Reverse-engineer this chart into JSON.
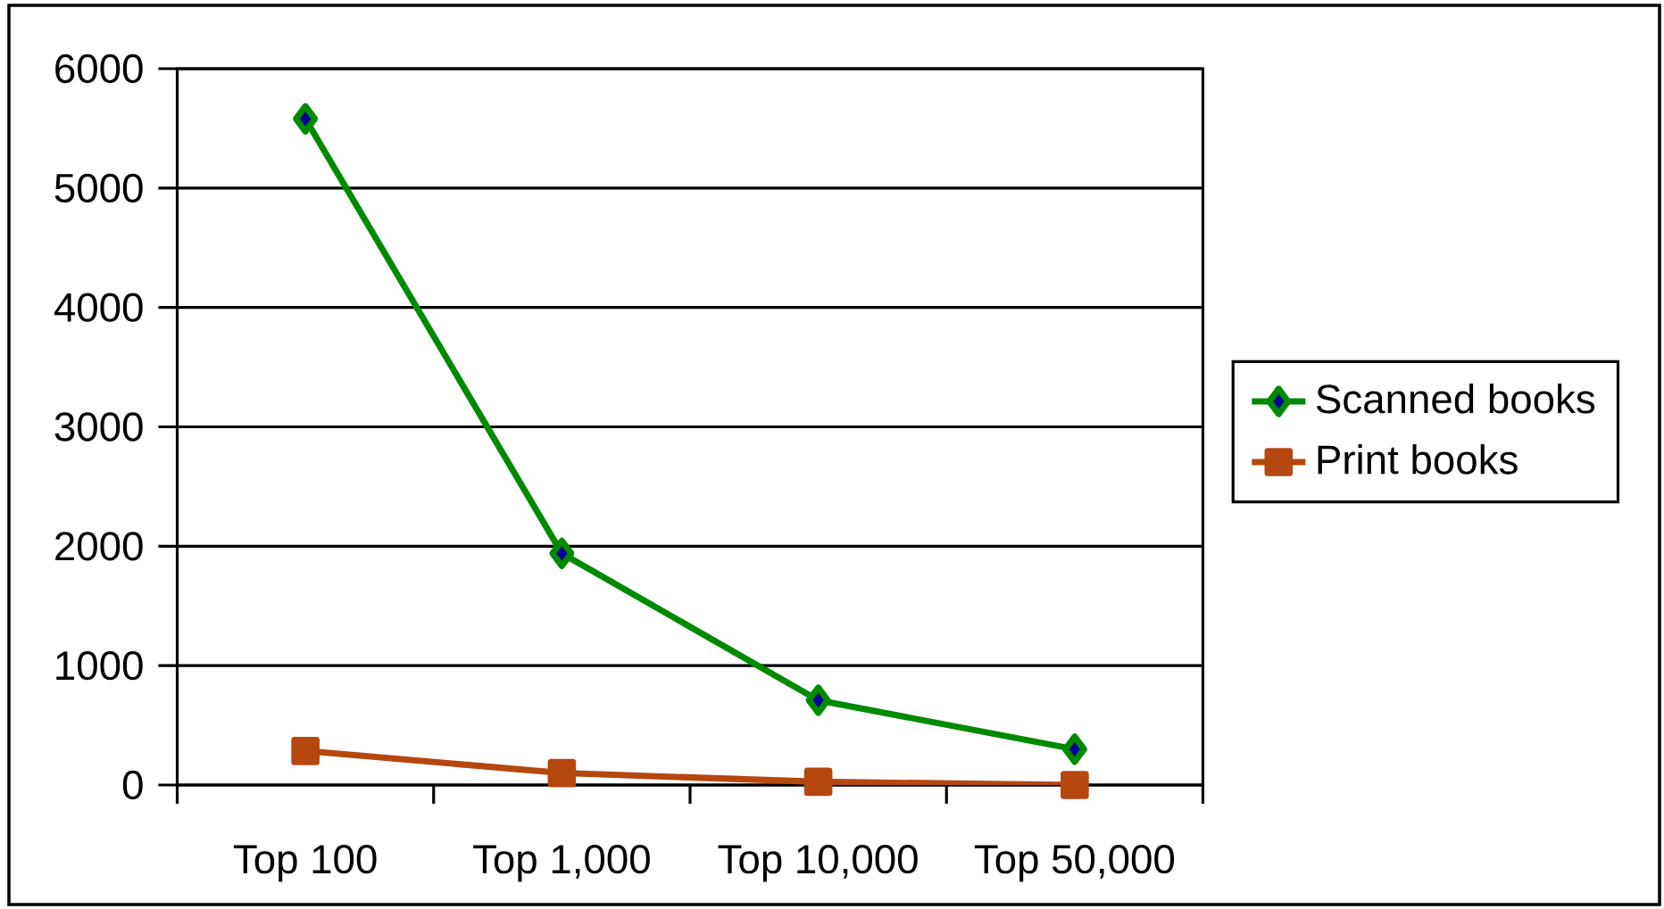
{
  "chart_data": {
    "type": "line",
    "categories": [
      "Top 100",
      "Top 1,000",
      "Top 10,000",
      "Top 50,000"
    ],
    "series": [
      {
        "name": "Scanned books",
        "color": "#008a00",
        "marker": "diamond",
        "values": [
          5580,
          1940,
          710,
          300
        ]
      },
      {
        "name": "Print books",
        "color": "#b5470f",
        "marker": "square",
        "values": [
          285,
          100,
          27,
          0
        ]
      }
    ],
    "ylim": [
      0,
      6000
    ],
    "yticks": [
      0,
      1000,
      2000,
      3000,
      4000,
      5000,
      6000
    ],
    "grid": "y",
    "legend": "right",
    "line_style": "solid"
  }
}
